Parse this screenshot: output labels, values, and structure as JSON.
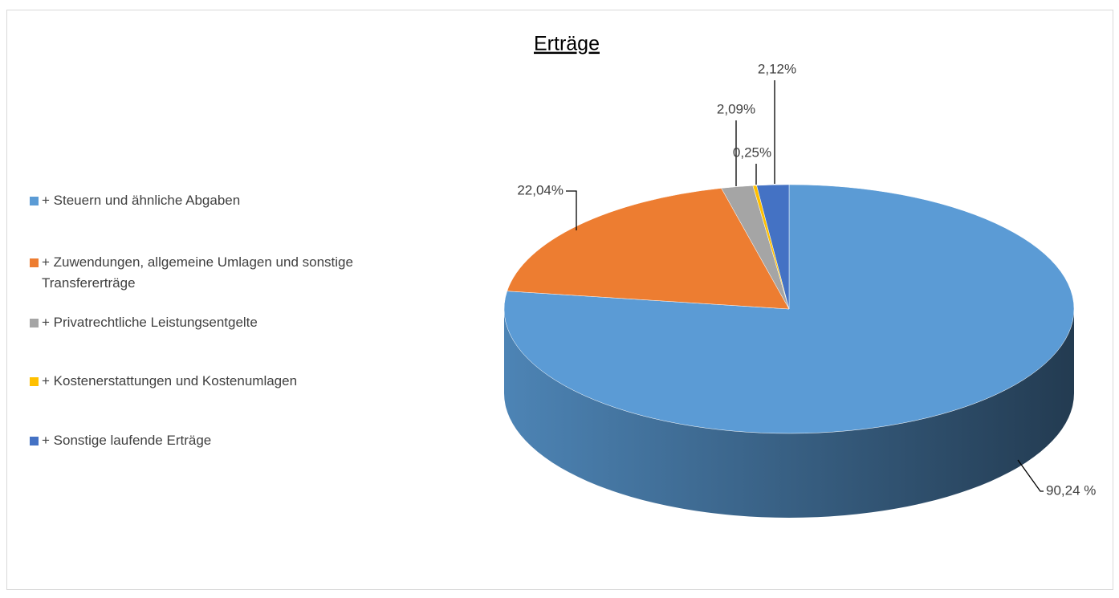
{
  "chart_data": {
    "type": "pie3d",
    "title": "Erträge",
    "categories": [
      "+ Steuern und ähnliche Abgaben",
      "+ Zuwendungen, allgemeine Umlagen und sonstige Transfererträge",
      "+ Privatrechtliche Leistungsentgelte",
      "+ Kostenerstattungen und Kostenumlagen",
      "+ Sonstige laufende Erträge"
    ],
    "values": [
      90.24,
      22.04,
      2.09,
      0.25,
      2.12
    ],
    "value_labels": [
      "90,24 %",
      "22,04%",
      "2,09%",
      "0,25%",
      "2,12%"
    ],
    "colors": [
      "#5b9bd5",
      "#ed7d31",
      "#a5a5a5",
      "#ffc000",
      "#4472c4"
    ],
    "legend": "left"
  }
}
